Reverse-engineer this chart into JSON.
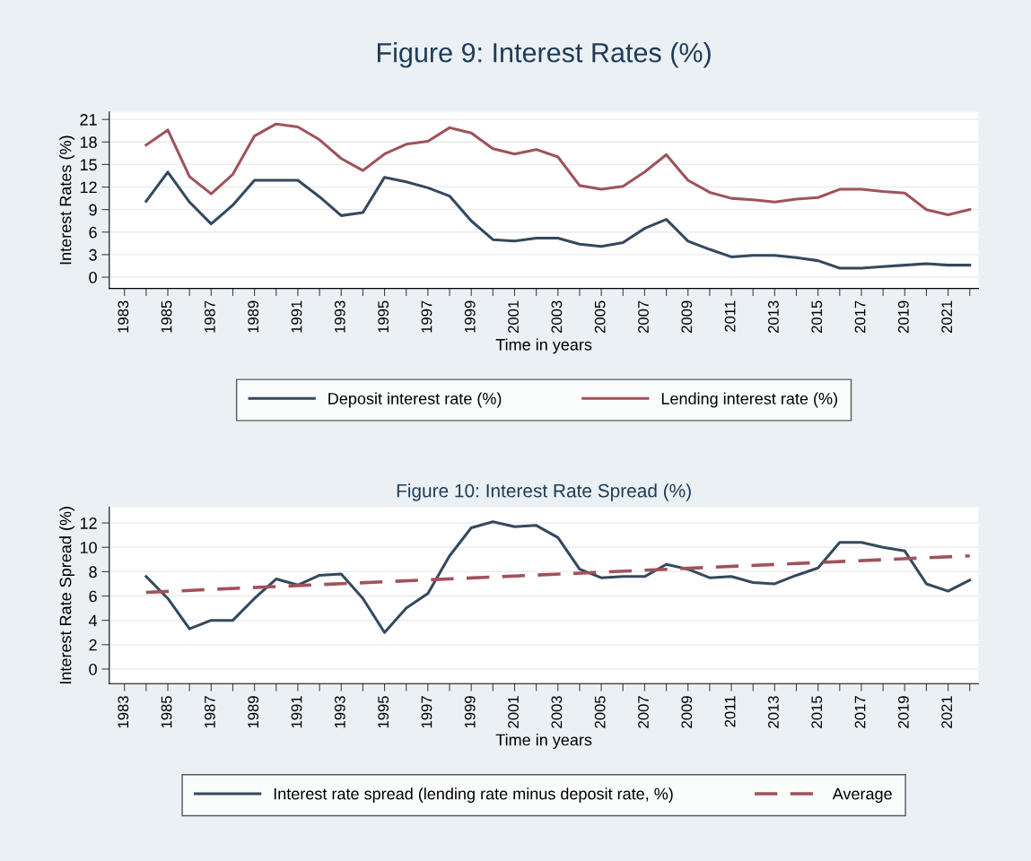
{
  "chart_data": [
    {
      "type": "line",
      "title": "Figure 9: Interest Rates (%)",
      "xlabel": "Time in years",
      "ylabel": "Interest Rates (%)",
      "x": [
        1984,
        1985,
        1986,
        1987,
        1988,
        1989,
        1990,
        1991,
        1992,
        1993,
        1994,
        1995,
        1996,
        1997,
        1998,
        1999,
        2000,
        2001,
        2002,
        2003,
        2004,
        2005,
        2006,
        2007,
        2008,
        2009,
        2010,
        2011,
        2012,
        2013,
        2014,
        2015,
        2016,
        2017,
        2018,
        2019,
        2020,
        2021,
        2022
      ],
      "series": [
        {
          "name": "Deposit interest rate (%)",
          "color": "#34495e",
          "values": [
            10.1,
            14.0,
            10.0,
            7.1,
            9.6,
            12.9,
            12.9,
            12.9,
            10.7,
            8.2,
            8.6,
            13.3,
            12.7,
            11.9,
            10.8,
            7.5,
            5.0,
            4.8,
            5.2,
            5.2,
            4.4,
            4.1,
            4.6,
            6.5,
            7.7,
            4.8,
            3.7,
            2.7,
            2.9,
            2.9,
            2.6,
            2.2,
            1.2,
            1.2,
            1.4,
            1.6,
            1.8,
            1.6,
            1.6
          ]
        },
        {
          "name": "Lending interest rate (%)",
          "color": "#a0525a",
          "values": [
            17.6,
            19.6,
            13.4,
            11.1,
            13.7,
            18.8,
            20.4,
            20.0,
            18.3,
            15.8,
            14.2,
            16.4,
            17.7,
            18.1,
            19.9,
            19.2,
            17.1,
            16.4,
            17.0,
            16.0,
            12.2,
            11.7,
            12.1,
            14.0,
            16.3,
            12.9,
            11.3,
            10.5,
            10.3,
            10.0,
            10.4,
            10.6,
            11.7,
            11.7,
            11.4,
            11.2,
            9.0,
            8.3,
            9.0
          ]
        }
      ],
      "xlim": [
        1982.3,
        2022.4
      ],
      "ylim": [
        -1.5,
        22
      ],
      "xticks": [
        1983,
        {
          "value": 1984,
          "label": null
        },
        1985,
        {
          "value": 1986,
          "label": null
        },
        1987,
        {
          "value": 1988,
          "label": null
        },
        1989,
        {
          "value": 1990,
          "label": null
        },
        1991,
        {
          "value": 1992,
          "label": null
        },
        1993,
        {
          "value": 1994,
          "label": null
        },
        1995,
        {
          "value": 1996,
          "label": null
        },
        1997,
        {
          "value": 1998,
          "label": null
        },
        1999,
        {
          "value": 2000,
          "label": null
        },
        2001,
        {
          "value": 2002,
          "label": null
        },
        2003,
        {
          "value": 2004,
          "label": null
        },
        2005,
        {
          "value": 2006,
          "label": null
        },
        2007,
        {
          "value": 2008,
          "label": null
        },
        2009,
        {
          "value": 2010,
          "label": null
        },
        2011,
        {
          "value": 2012,
          "label": null
        },
        2013,
        {
          "value": 2014,
          "label": null
        },
        2015,
        {
          "value": 2016,
          "label": null
        },
        2017,
        {
          "value": 2018,
          "label": null
        },
        2019,
        {
          "value": 2020,
          "label": null
        },
        2021,
        {
          "value": 2022,
          "label": null
        }
      ],
      "yticks": [
        0,
        3,
        6,
        9,
        12,
        15,
        18,
        21
      ],
      "grid": "y",
      "legend": "bottom",
      "line_style": "solid"
    },
    {
      "type": "line",
      "title": "Figure 10: Interest Rate Spread (%)",
      "xlabel": "Time in years",
      "ylabel": "Interest Rate Spread (%)",
      "x": [
        1984,
        1985,
        1986,
        1987,
        1988,
        1989,
        1990,
        1991,
        1992,
        1993,
        1994,
        1995,
        1996,
        1997,
        1998,
        1999,
        2000,
        2001,
        2002,
        2003,
        2004,
        2005,
        2006,
        2007,
        2008,
        2009,
        2010,
        2011,
        2012,
        2013,
        2014,
        2015,
        2016,
        2017,
        2018,
        2019,
        2020,
        2021,
        2022
      ],
      "series": [
        {
          "name": "Interest rate spread (lending rate minus deposit rate, %)",
          "color": "#34495e",
          "values": [
            7.6,
            5.8,
            3.3,
            4.0,
            4.0,
            5.8,
            7.4,
            6.9,
            7.7,
            7.8,
            5.8,
            3.0,
            5.0,
            6.2,
            9.3,
            11.6,
            12.1,
            11.7,
            11.8,
            10.8,
            8.2,
            7.5,
            7.6,
            7.6,
            8.6,
            8.2,
            7.5,
            7.6,
            7.1,
            7.0,
            7.7,
            8.3,
            10.4,
            10.4,
            10.0,
            9.7,
            7.0,
            6.4,
            7.3
          ]
        },
        {
          "name": "Average",
          "color": "#a0525a",
          "line_style": "dashed",
          "x": [
            1984,
            2022
          ],
          "values": [
            6.3,
            9.3
          ]
        }
      ],
      "xlim": [
        1982.3,
        2022.4
      ],
      "ylim": [
        -1.2,
        13.3
      ],
      "xticks": [
        1983,
        {
          "value": 1984,
          "label": null
        },
        1985,
        {
          "value": 1986,
          "label": null
        },
        1987,
        {
          "value": 1988,
          "label": null
        },
        1989,
        {
          "value": 1990,
          "label": null
        },
        1991,
        {
          "value": 1992,
          "label": null
        },
        1993,
        {
          "value": 1994,
          "label": null
        },
        1995,
        {
          "value": 1996,
          "label": null
        },
        1997,
        {
          "value": 1998,
          "label": null
        },
        1999,
        {
          "value": 2000,
          "label": null
        },
        2001,
        {
          "value": 2002,
          "label": null
        },
        2003,
        {
          "value": 2004,
          "label": null
        },
        2005,
        {
          "value": 2006,
          "label": null
        },
        2007,
        {
          "value": 2008,
          "label": null
        },
        2009,
        {
          "value": 2010,
          "label": null
        },
        2011,
        {
          "value": 2012,
          "label": null
        },
        2013,
        {
          "value": 2014,
          "label": null
        },
        2015,
        {
          "value": 2016,
          "label": null
        },
        2017,
        {
          "value": 2018,
          "label": null
        },
        2019,
        {
          "value": 2020,
          "label": null
        },
        2021,
        {
          "value": 2022,
          "label": null
        }
      ],
      "yticks": [
        0,
        2,
        4,
        6,
        8,
        10,
        12
      ],
      "grid": "y",
      "legend": "bottom",
      "line_style": "solid"
    }
  ]
}
